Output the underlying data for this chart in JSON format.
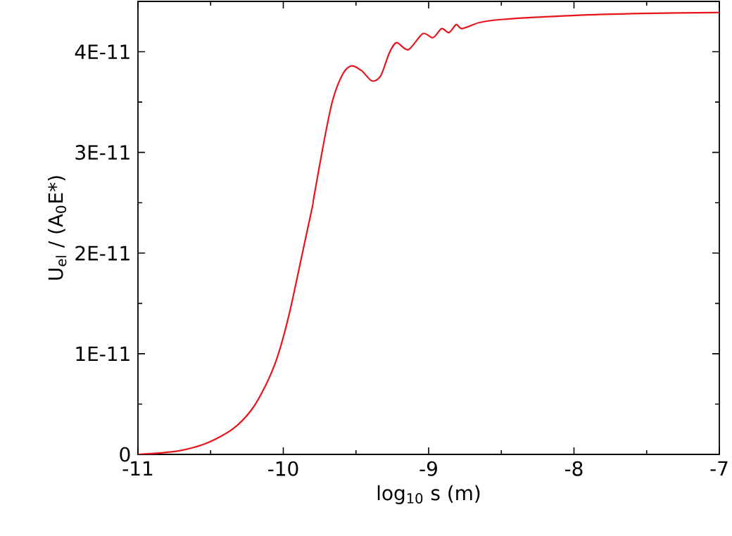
{
  "chart_data": {
    "type": "line",
    "xlabel": "log$_{10}$ s  (m)",
    "ylabel": "U$_{el}$ / (A$_{0}$E*)",
    "xlim": [
      -11,
      -7
    ],
    "ylim": [
      0,
      4.5e-11
    ],
    "xticks": [
      -11,
      -10,
      -9,
      -8,
      -7
    ],
    "yticks": [
      {
        "value": 0,
        "label": "0"
      },
      {
        "value": 1e-11,
        "label": "1E-11"
      },
      {
        "value": 2e-11,
        "label": "2E-11"
      },
      {
        "value": 3e-11,
        "label": "3E-11"
      },
      {
        "value": 4e-11,
        "label": "4E-11"
      }
    ],
    "series": [
      {
        "color": "#e8141c",
        "x": [
          -11,
          -10.74,
          -10.53,
          -10.35,
          -10.22,
          -10.12,
          -10.04,
          -9.96,
          -9.87,
          -9.8,
          -9.79,
          -9.72,
          -9.66,
          -9.59,
          -9.53,
          -9.46,
          -9.39,
          -9.33,
          -9.27,
          -9.22,
          -9.14,
          -9.04,
          -8.97,
          -8.91,
          -8.86,
          -8.81,
          -8.77,
          -8.65,
          -8.5,
          -8.01,
          -7.53,
          -7.0
        ],
        "values": [
          0,
          3e-13,
          1.1e-12,
          2.5e-12,
          4.4e-12,
          6.9e-12,
          9.7e-12,
          1.39e-11,
          1.99e-11,
          2.46e-11,
          2.55e-11,
          3.11e-11,
          3.52e-11,
          3.78e-11,
          3.86e-11,
          3.81e-11,
          3.71e-11,
          3.76e-11,
          3.99e-11,
          4.09e-11,
          4.02e-11,
          4.18e-11,
          4.14e-11,
          4.23e-11,
          4.19e-11,
          4.27e-11,
          4.23e-11,
          4.29e-11,
          4.32e-11,
          4.36e-11,
          4.38e-11,
          4.39e-11
        ]
      }
    ]
  }
}
